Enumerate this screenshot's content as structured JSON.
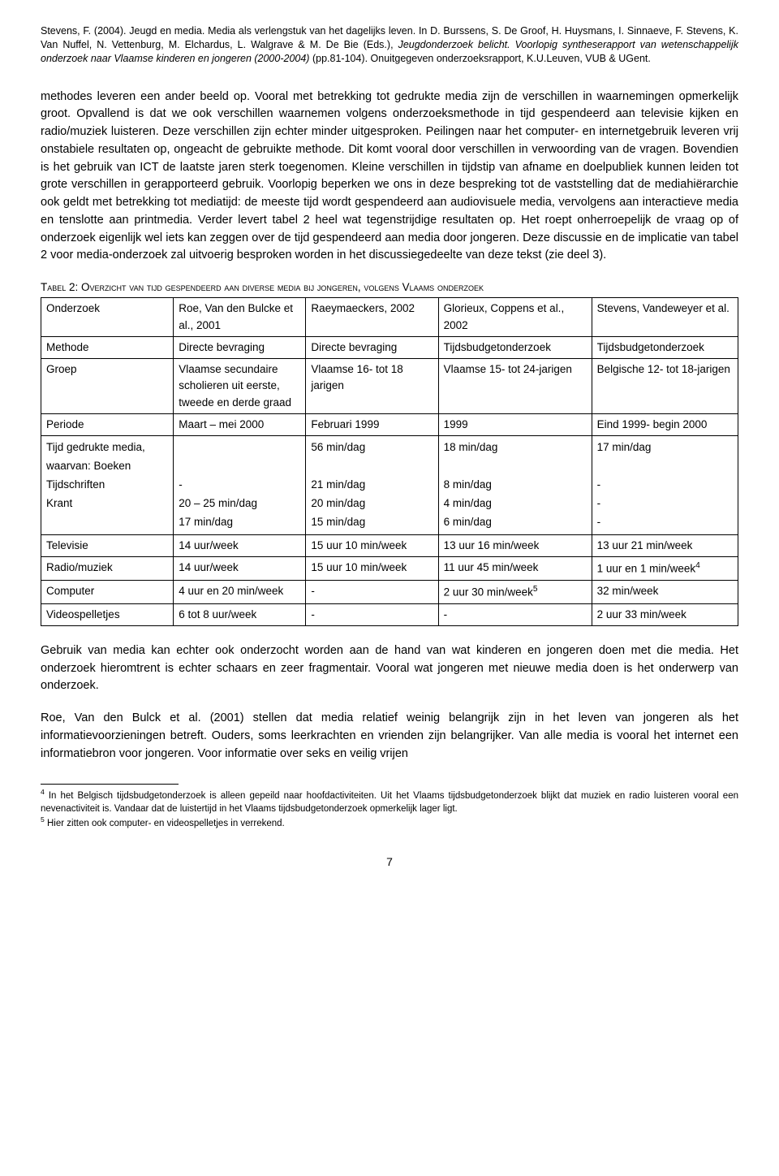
{
  "citation": {
    "authors_title": "Stevens, F. (2004). Jeugd en media. Media als verlengstuk van het dagelijks leven. In D. Burssens, S. De Groof, H. Huysmans, I. Sinnaeve, F. Stevens, K. Van Nuffel, N. Vettenburg, M. Elchardus, L. Walgrave & M. De Bie (Eds.), ",
    "ital1": "Jeugdonderzoek belicht. Voorlopig syntheserapport van wetenschappelijk onderzoek naar Vlaamse kinderen en jongeren (2000-2004)",
    "mid": " (pp.81-104). Onuitgegeven onderzoeksrapport, K.U.Leuven, VUB & UGent."
  },
  "para1": "methodes leveren een ander beeld op. Vooral met betrekking tot gedrukte media zijn de verschillen in waarnemingen opmerkelijk groot. Opvallend is dat we ook verschillen waarnemen volgens onderzoeksmethode in tijd gespendeerd aan televisie kijken en radio/muziek luisteren. Deze verschillen zijn echter minder uitgesproken. Peilingen naar het computer- en internetgebruik leveren vrij onstabiele resultaten op, ongeacht de gebruikte methode. Dit komt vooral door verschillen in verwoording van de vragen. Bovendien is het gebruik van ICT de laatste jaren sterk toegenomen. Kleine verschillen in tijdstip van afname en doelpubliek kunnen leiden tot grote verschillen in gerapporteerd gebruik. Voorlopig beperken we ons in deze bespreking tot de vaststelling dat de mediahiërarchie ook geldt met betrekking tot mediatijd: de meeste tijd wordt gespendeerd aan audiovisuele media, vervolgens aan interactieve media en tenslotte aan printmedia. Verder levert tabel 2 heel wat tegenstrijdige resultaten op. Het roept onherroepelijk de vraag op of onderzoek eigenlijk wel iets kan zeggen over de tijd gespendeerd aan media door jongeren. Deze discussie en de implicatie van tabel 2 voor media-onderzoek zal uitvoerig besproken worden in het discussiegedeelte van deze tekst (zie deel 3).",
  "table_caption": "Tabel 2: Overzicht van tijd gespendeerd aan diverse media bij jongeren, volgens Vlaams onderzoek",
  "table": {
    "rows": [
      {
        "label": "Onderzoek",
        "c1": "Roe, Van den Bulcke et al., 2001",
        "c2": "Raeymaeckers, 2002",
        "c3": "Glorieux, Coppens et al., 2002",
        "c4": "Stevens, Vandeweyer et al."
      },
      {
        "label": "Methode",
        "c1": "Directe bevraging",
        "c2": "Directe bevraging",
        "c3": "Tijdsbudgetonderzoek",
        "c4": "Tijdsbudgetonderzoek"
      },
      {
        "label": "Groep",
        "c1": "Vlaamse secundaire scholieren uit eerste, tweede en derde graad",
        "c2": "Vlaamse 16- tot 18 jarigen",
        "c3": "Vlaamse 15- tot 24-jarigen",
        "c4": "Belgische 12- tot 18-jarigen"
      },
      {
        "label": "Periode",
        "c1": "Maart – mei 2000",
        "c2": "Februari 1999",
        "c3": "1999",
        "c4": "Eind 1999- begin 2000"
      },
      {
        "label": "Tijd gedrukte media, waarvan: Boeken\nTijdschriften\nKrant",
        "c1": "\n\n-\n20 – 25 min/dag\n17 min/dag",
        "c2": "56 min/dag\n\n21 min/dag\n20 min/dag\n15 min/dag",
        "c3": "18 min/dag\n\n8 min/dag\n4 min/dag\n6 min/dag",
        "c4": "17 min/dag\n\n-\n-\n-"
      },
      {
        "label": "Televisie",
        "c1": "14 uur/week",
        "c2": "15 uur 10 min/week",
        "c3": "13 uur 16 min/week",
        "c4": "13 uur 21 min/week"
      },
      {
        "label": "Radio/muziek",
        "c1": "14 uur/week",
        "c2": "15 uur 10 min/week",
        "c3": "11 uur 45 min/week",
        "c4_html": "1 uur en 1 min/week<sup>4</sup>"
      },
      {
        "label": "Computer",
        "c1": "4 uur en 20 min/week",
        "c2": "-",
        "c3_html": "2 uur 30 min/week<sup>5</sup>",
        "c4": "32 min/week"
      },
      {
        "label": "Videospelletjes",
        "c1": "6 tot 8 uur/week",
        "c2": "-",
        "c3": "-",
        "c4": "2 uur 33 min/week"
      }
    ]
  },
  "para2": "Gebruik van media kan echter ook onderzocht worden aan de hand van wat kinderen en jongeren doen met die media. Het onderzoek hieromtrent is echter schaars en zeer fragmentair. Vooral wat jongeren met nieuwe media doen is het onderwerp van onderzoek.",
  "para3": "Roe, Van den Bulck et al. (2001) stellen dat media relatief weinig belangrijk zijn in het leven van jongeren als het informatievoorzieningen betreft. Ouders, soms leerkrachten en vrienden zijn belangrijker. Van alle media is vooral het internet een informatiebron voor jongeren. Voor informatie over seks en veilig vrijen",
  "footnote4": " In het Belgisch tijdsbudgetonderzoek is alleen gepeild naar hoofdactiviteiten. Uit het Vlaams tijdsbudgetonderzoek blijkt dat muziek en radio luisteren vooral een nevenactiviteit is. Vandaar dat de luistertijd in het Vlaams tijdsbudgetonderzoek opmerkelijk lager ligt.",
  "footnote5": " Hier zitten ook computer- en videospelletjes in verrekend.",
  "page_number": "7"
}
